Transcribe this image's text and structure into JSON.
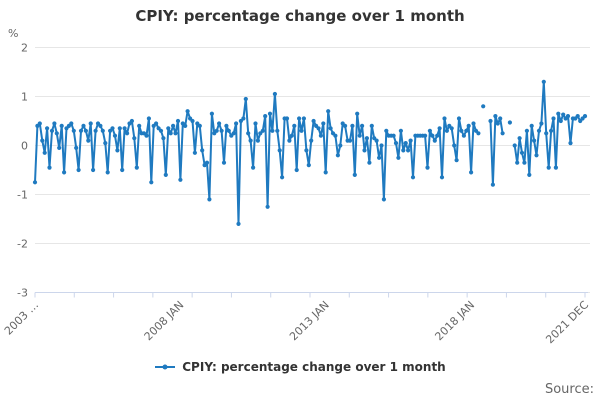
{
  "title": "CPIY: percentage change over 1 month",
  "y_axis_unit": "%",
  "legend": {
    "label": "CPIY: percentage change over 1 month"
  },
  "source_label": "Source:",
  "colors": {
    "series": "#1f7ac0",
    "grid": "#e6e6e6",
    "axis": "#ccd6eb",
    "axis_label": "#666666",
    "text": "#333333"
  },
  "chart_data": {
    "type": "line",
    "title": "CPIY: percentage change over 1 month",
    "xlabel": "",
    "ylabel": "%",
    "ylim": [
      -3,
      2
    ],
    "grid": "horizontal",
    "legend_position": "bottom",
    "y_ticks": [
      2,
      1,
      0,
      -1,
      -2,
      -3
    ],
    "x_start": "2003 JAN",
    "x_end": "2021 DEC",
    "x_frequency": "monthly",
    "x_labels": [
      {
        "label": "2003 …",
        "month": 0
      },
      {
        "label": "2008 JAN",
        "month": 60
      },
      {
        "label": "2013 JAN",
        "month": 120
      },
      {
        "label": "2018 JAN",
        "month": 180
      },
      {
        "label": "2021 DEC",
        "month": 227
      }
    ],
    "series": [
      {
        "name": "CPIY: percentage change over 1 month",
        "values": [
          -0.75,
          0.4,
          0.45,
          0.1,
          -0.15,
          0.35,
          -0.45,
          0.3,
          0.45,
          0.25,
          -0.05,
          0.4,
          -0.55,
          0.35,
          0.4,
          0.45,
          0.3,
          -0.05,
          -0.5,
          0.3,
          0.4,
          0.3,
          0.1,
          0.45,
          -0.5,
          0.3,
          0.45,
          0.4,
          0.3,
          0.05,
          -0.55,
          0.3,
          0.35,
          0.2,
          -0.1,
          0.35,
          -0.5,
          0.35,
          0.25,
          0.45,
          0.5,
          0.15,
          -0.45,
          0.4,
          0.25,
          0.25,
          0.2,
          0.55,
          -0.75,
          0.4,
          0.45,
          0.35,
          0.3,
          0.15,
          -0.6,
          0.35,
          0.25,
          0.4,
          0.25,
          0.5,
          -0.7,
          0.45,
          0.4,
          0.7,
          0.55,
          0.5,
          -0.15,
          0.45,
          0.4,
          -0.1,
          -0.4,
          -0.35,
          -1.1,
          0.65,
          0.25,
          0.3,
          0.45,
          0.3,
          -0.35,
          0.4,
          0.3,
          0.2,
          0.25,
          0.45,
          -1.6,
          0.5,
          0.55,
          0.95,
          0.25,
          0.1,
          -0.45,
          0.45,
          0.1,
          0.25,
          0.3,
          0.6,
          -1.25,
          0.65,
          0.3,
          1.05,
          0.3,
          -0.1,
          -0.65,
          0.55,
          0.55,
          0.1,
          0.2,
          0.4,
          -0.5,
          0.55,
          0.3,
          0.55,
          -0.1,
          -0.4,
          0.1,
          0.5,
          0.4,
          0.35,
          0.2,
          0.45,
          -0.55,
          0.7,
          0.35,
          0.25,
          0.2,
          -0.2,
          0.0,
          0.45,
          0.4,
          0.1,
          0.1,
          0.4,
          -0.6,
          0.65,
          0.2,
          0.4,
          -0.1,
          0.15,
          -0.35,
          0.4,
          0.15,
          0.1,
          -0.25,
          0.0,
          -1.1,
          0.3,
          0.2,
          0.2,
          0.2,
          0.05,
          -0.25,
          0.3,
          -0.1,
          0.05,
          -0.1,
          0.1,
          -0.65,
          0.2,
          0.2,
          0.2,
          0.2,
          0.2,
          -0.45,
          0.3,
          0.2,
          0.1,
          0.2,
          0.35,
          -0.65,
          0.55,
          0.3,
          0.4,
          0.35,
          0.0,
          -0.3,
          0.55,
          0.3,
          0.2,
          0.3,
          0.4,
          -0.55,
          0.45,
          0.3,
          0.25,
          null,
          0.8,
          null,
          null,
          0.5,
          -0.8,
          0.6,
          0.45,
          0.55,
          0.25,
          null,
          null,
          0.47,
          null,
          0.0,
          -0.35,
          0.15,
          -0.15,
          -0.35,
          0.3,
          -0.6,
          0.4,
          0.1,
          -0.2,
          0.3,
          0.45,
          1.3,
          0.25,
          -0.45,
          0.3,
          0.55,
          -0.45,
          0.65,
          0.5,
          0.63,
          0.55,
          0.6,
          0.05,
          0.55,
          0.55,
          0.6,
          0.5,
          0.55,
          0.6
        ]
      }
    ]
  }
}
